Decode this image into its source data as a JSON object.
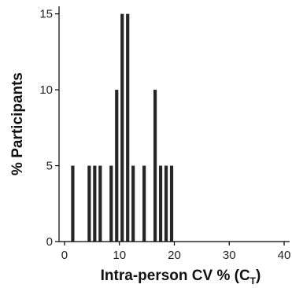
{
  "chart_data": {
    "type": "bar",
    "xlabel": "Intra-person CV % (C",
    "xlabel_subscript": "T",
    "xlabel_close": ")",
    "ylabel": "% Participants",
    "xlim": [
      -1,
      41
    ],
    "ylim": [
      0,
      15.5
    ],
    "xticks": [
      0,
      10,
      20,
      30,
      40
    ],
    "yticks": [
      0,
      5,
      10,
      15
    ],
    "bar_color": "#262626",
    "bar_width": 0.6,
    "bars": [
      {
        "x": 1.5,
        "y": 5
      },
      {
        "x": 4.5,
        "y": 5
      },
      {
        "x": 5.5,
        "y": 5
      },
      {
        "x": 6.5,
        "y": 5
      },
      {
        "x": 8.5,
        "y": 5
      },
      {
        "x": 9.5,
        "y": 10
      },
      {
        "x": 10.5,
        "y": 15
      },
      {
        "x": 11.5,
        "y": 15
      },
      {
        "x": 12.5,
        "y": 5
      },
      {
        "x": 14.5,
        "y": 5
      },
      {
        "x": 16.5,
        "y": 10
      },
      {
        "x": 17.5,
        "y": 5
      },
      {
        "x": 18.5,
        "y": 5
      },
      {
        "x": 19.5,
        "y": 5
      }
    ],
    "grid": false,
    "legend": "none"
  }
}
